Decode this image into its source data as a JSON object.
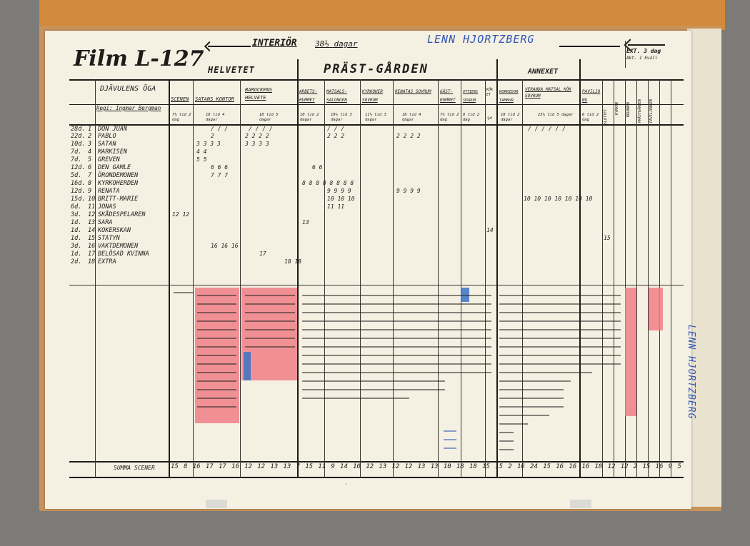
{
  "film_title": "Film L-127",
  "top_interior": "INTERIÖR",
  "top_days": "38½ dagar",
  "top_name": "LENN HJORTZBERG",
  "ext_label": "EXT. 3 dag",
  "ext_sub": "Akt. 1 kväll",
  "side_name": "LENN HJORTZBERG",
  "sections": {
    "helvetet": "HELVETET",
    "prast": "PRÄST-GÅRDEN",
    "annexet": "ANNEXET"
  },
  "film_heading": "DJÄVULENS ÖGA",
  "director": "Regi: Ingmar Bergman",
  "columns": {
    "scenen": "SCENEN",
    "satans": "SATANS KONTOR",
    "barockens": "BAROCKENS HELVETE",
    "arbets": "ARBETS-RUMMET",
    "matsals": "MATSALS-SALONGEN",
    "kyrkoher": "KYRKOHER SOVRUM",
    "renatas": "RENATAS SOVRUM",
    "gast": "GÄST-RUMMET",
    "ottilie": "OTTIENS SOVRUM",
    "koket": "KÖKET",
    "korridor": "KORRIDOR TAMBUR",
    "veranda": "VERANDA MATSAL KÖK SOVRUM",
    "paviljong": "PAVILJONG",
    "slottet": "SLOTTET",
    "kyrkan": "KYRKAN",
    "brunnen": "BRUNNEN",
    "prastg": "PRÄSTGÅRDEN",
    "paviljongen": "PAVILJONGEN"
  },
  "durations": [
    "7½ tid 2 dag",
    "18 tid 4 dagar",
    "18 tid 5 dagar",
    "10 tid 2 dagar",
    "10½ tid 3 dagar",
    "11½ tid 3 dagar",
    "16 tid 4 dagar",
    "7½ tid 2 dag",
    "8 tid 2 dag",
    "½d",
    "10 tid 2 dagar",
    "23½ tid 5 dagar",
    "6 tid 2 dag"
  ],
  "cast": [
    {
      "days": "28d.",
      "no": "1",
      "name": "DON JUAN"
    },
    {
      "days": "22d.",
      "no": "2",
      "name": "PABLO"
    },
    {
      "days": "10d.",
      "no": "3",
      "name": "SATAN"
    },
    {
      "days": "7d.",
      "no": "4",
      "name": "MARKISEN"
    },
    {
      "days": "7d.",
      "no": "5",
      "name": "GREVEN"
    },
    {
      "days": "12d.",
      "no": "6",
      "name": "DEN GAMLE"
    },
    {
      "days": "5d.",
      "no": "7",
      "name": "ÖRONDEMONEN"
    },
    {
      "days": "16d.",
      "no": "8",
      "name": "KYRKOHERDEN"
    },
    {
      "days": "12d.",
      "no": "9",
      "name": "RENATA"
    },
    {
      "days": "15d.",
      "no": "10",
      "name": "BRITT-MARIE"
    },
    {
      "days": "6d.",
      "no": "11",
      "name": "JONAS"
    },
    {
      "days": "3d.",
      "no": "12",
      "name": "SKÅDESPELAREN"
    },
    {
      "days": "1d.",
      "no": "13",
      "name": "SARA"
    },
    {
      "days": "1d.",
      "no": "14",
      "name": "KOKERSKAN"
    },
    {
      "days": "1d.",
      "no": "15",
      "name": "STATYN"
    },
    {
      "days": "3d.",
      "no": "16",
      "name": "VAKTDEMONEN"
    },
    {
      "days": "1d.",
      "no": "17",
      "name": "BELÖSAD KVINNA"
    },
    {
      "days": "2d.",
      "no": "18",
      "name": "EXTRA"
    }
  ],
  "summa_label": "SUMMA SCENER",
  "summa_values": [
    "15",
    "8",
    "16",
    "17",
    "17",
    "16",
    "12",
    "12",
    "13",
    "13",
    "7",
    "15",
    "11",
    "9",
    "14",
    "10",
    "12",
    "13",
    "12",
    "12",
    "13",
    "13",
    "10",
    "18",
    "18",
    "15",
    "15",
    "2",
    "16",
    "24",
    "15",
    "16",
    "16",
    "16",
    "18",
    "12",
    "12",
    "2",
    "15",
    "16",
    "9",
    "5"
  ],
  "colors": {
    "ink": "#1e1c1a",
    "blue_ink": "#2f55b5",
    "pink_marker": "#ef7f86",
    "blue_marker": "#3a73c6",
    "paper": "#f4f0e2",
    "folder": "#c9925a"
  }
}
